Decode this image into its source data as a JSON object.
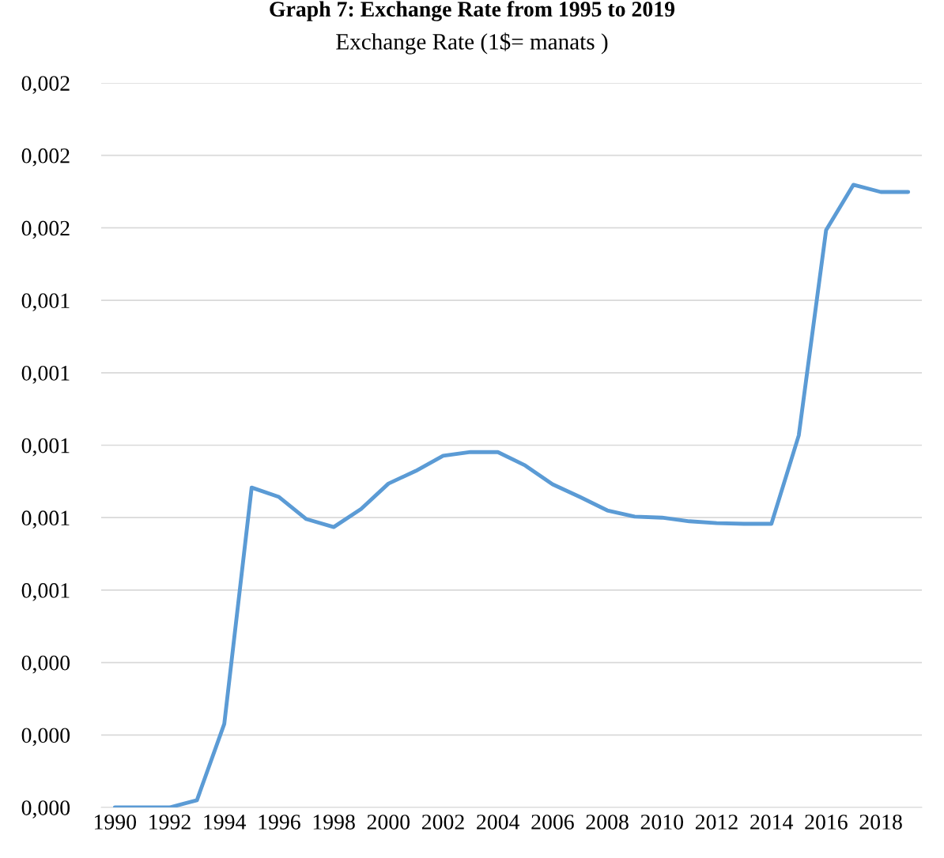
{
  "chart_data": {
    "type": "line",
    "title": "Graph 7: Exchange Rate from 1995 to 2019",
    "subtitle": "Exchange Rate (1$= manats )",
    "categories": [
      "1990",
      null,
      "1992",
      null,
      "1994",
      null,
      "1996",
      null,
      "1998",
      null,
      "2000",
      null,
      "2002",
      null,
      "2004",
      null,
      "2006",
      null,
      "2008",
      null,
      "2010",
      null,
      "2012",
      null,
      "2014",
      null,
      "2016",
      null,
      "2018",
      null
    ],
    "series": [
      {
        "color": "#5b9bd5",
        "values": [
          0,
          0,
          0,
          2e-05,
          0.000231,
          0.000883,
          0.000857,
          0.000796,
          0.000774,
          0.000824,
          0.000894,
          0.000929,
          0.000971,
          0.000981,
          0.000981,
          0.000944,
          0.000892,
          0.000857,
          0.00082,
          0.000803,
          0.0008,
          0.00079,
          0.000785,
          0.000783,
          0.000783,
          0.001027,
          0.001594,
          0.001719,
          0.001699,
          0.001699
        ]
      }
    ],
    "ylim": [
      0,
      0.002
    ],
    "yticks": [
      {
        "value": 0,
        "label": "0,000"
      },
      {
        "value": 0.0002,
        "label": "0,000"
      },
      {
        "value": 0.0004,
        "label": "0,000"
      },
      {
        "value": 0.0006,
        "label": "0,001"
      },
      {
        "value": 0.0008,
        "label": "0,001"
      },
      {
        "value": 0.001,
        "label": "0,001"
      },
      {
        "value": 0.0012,
        "label": "0,001"
      },
      {
        "value": 0.0014,
        "label": "0,001"
      },
      {
        "value": 0.0016,
        "label": "0,002"
      },
      {
        "value": 0.0018,
        "label": "0,002"
      },
      {
        "value": 0.002,
        "label": "0,002"
      }
    ],
    "grid": "y",
    "marker": "none",
    "line_style": "solid"
  }
}
